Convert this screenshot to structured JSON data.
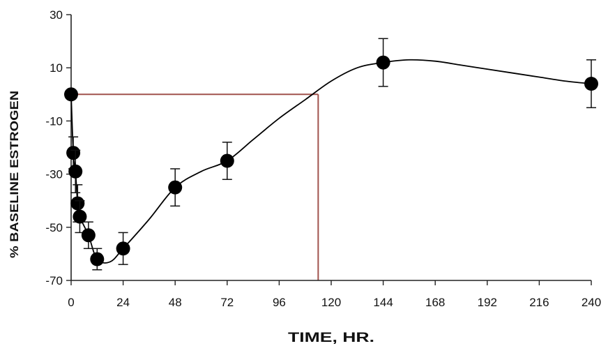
{
  "chart_data": {
    "type": "scatter",
    "xlabel": "TIME, HR.",
    "ylabel": "% BASELINE ESTROGEN",
    "xlim": [
      0,
      240
    ],
    "ylim": [
      -70,
      30
    ],
    "x_ticks": [
      0,
      24,
      48,
      72,
      96,
      120,
      144,
      168,
      192,
      216,
      240
    ],
    "y_ticks": [
      30,
      10,
      -10,
      -30,
      -50,
      -70
    ],
    "grid": false,
    "legend": "none",
    "series": [
      {
        "marker_color": "#000000",
        "points": [
          {
            "x": 0,
            "y": 0,
            "err": 0
          },
          {
            "x": 1,
            "y": -22,
            "err": 6
          },
          {
            "x": 2,
            "y": -29,
            "err": 8
          },
          {
            "x": 3,
            "y": -41,
            "err": 7
          },
          {
            "x": 4,
            "y": -46,
            "err": 6
          },
          {
            "x": 8,
            "y": -53,
            "err": 5
          },
          {
            "x": 12,
            "y": -62,
            "err": 4
          },
          {
            "x": 24,
            "y": -58,
            "err": 6
          },
          {
            "x": 48,
            "y": -35,
            "err": 7
          },
          {
            "x": 72,
            "y": -25,
            "err": 7
          },
          {
            "x": 144,
            "y": 12,
            "err": 9
          },
          {
            "x": 240,
            "y": 4,
            "err": 9
          }
        ]
      }
    ],
    "fit_curve": {
      "color": "#000000",
      "points": [
        [
          0,
          0
        ],
        [
          1,
          -22
        ],
        [
          2,
          -29
        ],
        [
          3,
          -41
        ],
        [
          4,
          -46
        ],
        [
          8,
          -53
        ],
        [
          12,
          -62
        ],
        [
          18,
          -63
        ],
        [
          24,
          -58
        ],
        [
          36,
          -47
        ],
        [
          48,
          -35
        ],
        [
          60,
          -29
        ],
        [
          72,
          -25
        ],
        [
          84,
          -17
        ],
        [
          96,
          -9
        ],
        [
          108,
          -2
        ],
        [
          120,
          5
        ],
        [
          132,
          10
        ],
        [
          144,
          12
        ],
        [
          156,
          13
        ],
        [
          168,
          12.5
        ],
        [
          180,
          11
        ],
        [
          192,
          9.5
        ],
        [
          204,
          8
        ],
        [
          216,
          6.5
        ],
        [
          228,
          5
        ],
        [
          240,
          4
        ]
      ]
    },
    "reference_lines": {
      "color": "#a0524d",
      "y": 0,
      "x": 114
    }
  }
}
